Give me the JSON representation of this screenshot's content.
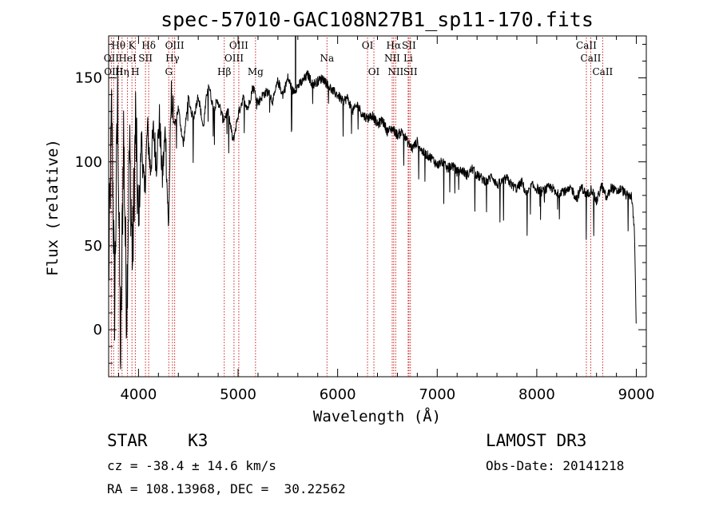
{
  "chart_data": {
    "type": "line",
    "title": "spec-57010-GAC108N27B1_sp11-170.fits",
    "xlabel": "Wavelength (Å)",
    "ylabel": "Flux (relative)",
    "xlim": [
      3700,
      9100
    ],
    "ylim": [
      -28,
      175
    ],
    "xticks": [
      4000,
      5000,
      6000,
      7000,
      8000,
      9000
    ],
    "yticks": [
      0,
      50,
      100,
      150
    ],
    "grid": false,
    "line_color": "#000000",
    "marker_color": "#cc2222",
    "series": [
      {
        "name": "flux",
        "x": [
          3700,
          3730,
          3760,
          3790,
          3820,
          3850,
          3880,
          3910,
          3940,
          3970,
          4000,
          4030,
          4060,
          4090,
          4120,
          4150,
          4180,
          4210,
          4240,
          4270,
          4300,
          4330,
          4360,
          4400,
          4450,
          4500,
          4550,
          4600,
          4650,
          4700,
          4750,
          4800,
          4850,
          4900,
          4950,
          5000,
          5050,
          5100,
          5150,
          5200,
          5250,
          5300,
          5350,
          5400,
          5450,
          5500,
          5550,
          5600,
          5650,
          5700,
          5750,
          5800,
          5850,
          5900,
          5950,
          6000,
          6050,
          6100,
          6150,
          6200,
          6250,
          6300,
          6350,
          6400,
          6450,
          6500,
          6550,
          6600,
          6650,
          6700,
          6750,
          6800,
          6850,
          6900,
          6950,
          7000,
          7050,
          7100,
          7150,
          7200,
          7250,
          7300,
          7350,
          7400,
          7450,
          7500,
          7550,
          7600,
          7650,
          7700,
          7750,
          7800,
          7850,
          7900,
          7950,
          8000,
          8050,
          8100,
          8150,
          8200,
          8250,
          8300,
          8350,
          8400,
          8450,
          8500,
          8550,
          8600,
          8650,
          8700,
          8750,
          8800,
          8850,
          8900,
          8950,
          8980,
          9000
        ],
        "y": [
          30,
          130,
          15,
          140,
          -20,
          120,
          10,
          110,
          40,
          125,
          60,
          115,
          80,
          120,
          95,
          118,
          100,
          125,
          90,
          120,
          60,
          140,
          120,
          132,
          110,
          138,
          125,
          140,
          120,
          148,
          132,
          136,
          125,
          130,
          112,
          128,
          138,
          132,
          145,
          135,
          140,
          142,
          136,
          148,
          140,
          150,
          142,
          145,
          148,
          152,
          146,
          148,
          150,
          146,
          142,
          140,
          136,
          138,
          130,
          134,
          128,
          126,
          128,
          122,
          125,
          118,
          120,
          116,
          118,
          112,
          108,
          112,
          106,
          104,
          102,
          98,
          100,
          96,
          98,
          94,
          95,
          92,
          96,
          92,
          90,
          88,
          92,
          86,
          88,
          90,
          86,
          84,
          88,
          80,
          86,
          84,
          82,
          84,
          85,
          80,
          83,
          82,
          84,
          78,
          85,
          80,
          84,
          76,
          86,
          78,
          85,
          82,
          84,
          80,
          80,
          60,
          0
        ]
      }
    ],
    "spectral_lines": [
      {
        "name": "Hθ",
        "wave": 3798,
        "row": 0
      },
      {
        "name": "K",
        "wave": 3934,
        "row": 0
      },
      {
        "name": "Hδ",
        "wave": 4102,
        "row": 0
      },
      {
        "name": "OIII",
        "wave": 4363,
        "row": 0
      },
      {
        "name": "OIII",
        "wave": 5007,
        "row": 0
      },
      {
        "name": "OI",
        "wave": 6300,
        "row": 0
      },
      {
        "name": "Hα",
        "wave": 6563,
        "row": 0
      },
      {
        "name": "SII",
        "wave": 6716,
        "row": 0
      },
      {
        "name": "CaII",
        "wave": 8498,
        "row": 0
      },
      {
        "name": "OII",
        "wave": 3727,
        "row": 1
      },
      {
        "name": "HeI",
        "wave": 3889,
        "row": 1
      },
      {
        "name": "SII",
        "wave": 4070,
        "row": 1
      },
      {
        "name": "Hγ",
        "wave": 4341,
        "row": 1
      },
      {
        "name": "OIII",
        "wave": 4959,
        "row": 1
      },
      {
        "name": "Na",
        "wave": 5893,
        "row": 1
      },
      {
        "name": "NII",
        "wave": 6548,
        "row": 1
      },
      {
        "name": "Li",
        "wave": 6708,
        "row": 1
      },
      {
        "name": "CaII",
        "wave": 8542,
        "row": 1
      },
      {
        "name": "OIII",
        "wave": 3750,
        "row": 2
      },
      {
        "name": "Hη",
        "wave": 3835,
        "row": 2
      },
      {
        "name": "H",
        "wave": 3968,
        "row": 2
      },
      {
        "name": "G",
        "wave": 4304,
        "row": 2
      },
      {
        "name": "Hβ",
        "wave": 4861,
        "row": 2
      },
      {
        "name": "Mg",
        "wave": 5175,
        "row": 2
      },
      {
        "name": "OI",
        "wave": 6364,
        "row": 2
      },
      {
        "name": "NII",
        "wave": 6583,
        "row": 2
      },
      {
        "name": "SII",
        "wave": 6731,
        "row": 2
      },
      {
        "name": "CaII",
        "wave": 8662,
        "row": 2
      }
    ],
    "emission_spike": {
      "wave": 5577,
      "peak": 175
    }
  },
  "info": {
    "classification": "STAR    K3",
    "redshift": "cz = -38.4 ± 14.6 km/s",
    "coords": "RA = 108.13968, DEC =  30.22562",
    "survey": "LAMOST DR3",
    "obs_date": "Obs-Date: 20141218"
  }
}
